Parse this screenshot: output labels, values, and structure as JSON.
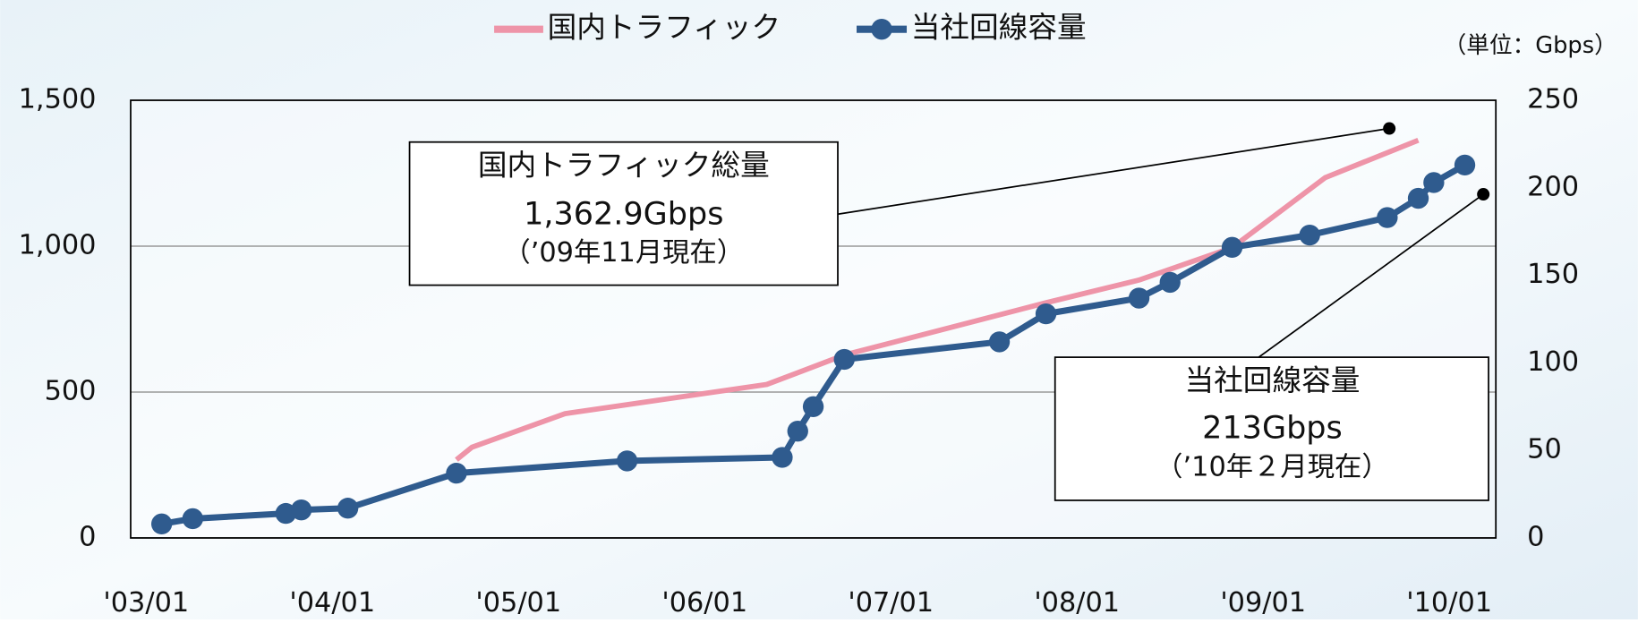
{
  "chart_data": {
    "type": "line",
    "unit_label": "（単位：Gbps）",
    "xlim": [
      "2002-12",
      "2010-04"
    ],
    "xticks": [
      {
        "value": "2003-01",
        "label": "'03/01"
      },
      {
        "value": "2004-01",
        "label": "'04/01"
      },
      {
        "value": "2005-01",
        "label": "'05/01"
      },
      {
        "value": "2006-01",
        "label": "'06/01"
      },
      {
        "value": "2007-01",
        "label": "'07/01"
      },
      {
        "value": "2008-01",
        "label": "'08/01"
      },
      {
        "value": "2009-01",
        "label": "'09/01"
      },
      {
        "value": "2010-01",
        "label": "'10/01"
      }
    ],
    "ylim": [
      0,
      1500
    ],
    "yticks": [
      0,
      500,
      {
        "value": 1000,
        "label": "1,000"
      },
      {
        "value": 1500,
        "label": "1,500"
      }
    ],
    "y2lim": [
      0,
      250
    ],
    "y2ticks": [
      0,
      50,
      100,
      150,
      200,
      250
    ],
    "grid": true,
    "series": [
      {
        "name": "国内トラフィック",
        "color": "#ee94a8",
        "axis": "y",
        "x": [
          "2004-09",
          "2004-10",
          "2005-04",
          "2006-05",
          "2006-10",
          "2007-11",
          "2008-05",
          "2008-11",
          "2009-05",
          "2009-11"
        ],
        "values": [
          268,
          311,
          426,
          526,
          627,
          806,
          884,
          995,
          1235,
          1363
        ]
      },
      {
        "name": "当社回線容量",
        "color": "#2f5b8e",
        "axis": "y2",
        "x": [
          "2003-02",
          "2003-04",
          "2003-10",
          "2003-11",
          "2004-02",
          "2004-09",
          "2005-08",
          "2006-06",
          "2006-07",
          "2006-08",
          "2006-10",
          "2007-08",
          "2007-11",
          "2008-05",
          "2008-07",
          "2008-11",
          "2009-04",
          "2009-09",
          "2009-11",
          "2009-12",
          "2010-02"
        ],
        "values": [
          8,
          11,
          14,
          16,
          17,
          37,
          44,
          46,
          61,
          75,
          102,
          112,
          128,
          137,
          146,
          166,
          173,
          183,
          194,
          203,
          213
        ]
      }
    ],
    "annotations": [
      {
        "lines": [
          "国内トラフィック総量",
          "1,362.9Gbps",
          "（’09年11月現在）"
        ]
      },
      {
        "lines": [
          "当社回線容量",
          "213Gbps",
          "（’10年２月現在）"
        ]
      }
    ]
  }
}
